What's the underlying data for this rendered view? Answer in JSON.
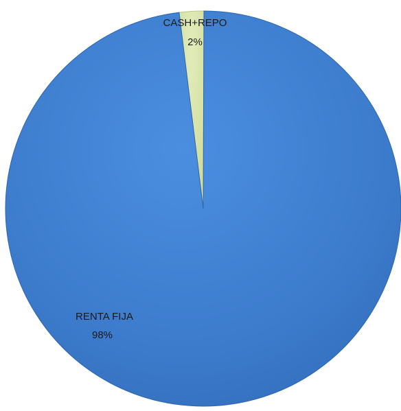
{
  "chart_data": {
    "type": "pie",
    "title": "",
    "slices": [
      {
        "label": "CASH+REPO",
        "value": 2,
        "value_label": "2%",
        "color": "#d7e4a8"
      },
      {
        "label": "RENTA FIJA",
        "value": 98,
        "value_label": "98%",
        "color": "#3e7fd0"
      }
    ],
    "start_angle_deg": -7,
    "legend": "none",
    "data_labels": "category-and-percent"
  }
}
